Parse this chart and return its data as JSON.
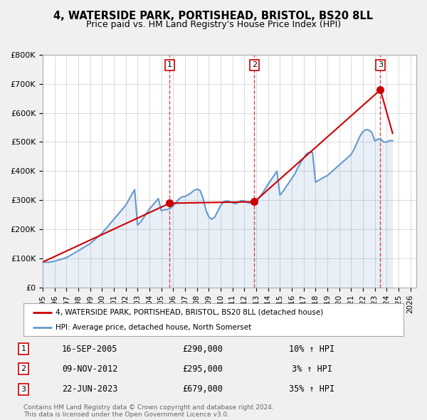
{
  "title": "4, WATERSIDE PARK, PORTISHEAD, BRISTOL, BS20 8LL",
  "subtitle": "Price paid vs. HM Land Registry's House Price Index (HPI)",
  "background_color": "#f0f0f0",
  "plot_background": "#ffffff",
  "grid_color": "#cccccc",
  "xmin": 1995.0,
  "xmax": 2026.5,
  "ymin": 0,
  "ymax": 800000,
  "yticks": [
    0,
    100000,
    200000,
    300000,
    400000,
    500000,
    600000,
    700000,
    800000
  ],
  "ytick_labels": [
    "£0",
    "£100K",
    "£200K",
    "£300K",
    "£400K",
    "£500K",
    "£600K",
    "£700K",
    "£800K"
  ],
  "xtick_years": [
    1995,
    1996,
    1997,
    1998,
    1999,
    2000,
    2001,
    2002,
    2003,
    2004,
    2005,
    2006,
    2007,
    2008,
    2009,
    2010,
    2011,
    2012,
    2013,
    2014,
    2015,
    2016,
    2017,
    2018,
    2019,
    2020,
    2021,
    2022,
    2023,
    2024,
    2025,
    2026
  ],
  "sale_color": "#cc0000",
  "hpi_color": "#6699cc",
  "sale_linewidth": 1.5,
  "hpi_linewidth": 1.5,
  "transaction_box_color": "#cc0000",
  "transactions": [
    {
      "num": 1,
      "year": 2005.71,
      "price": 290000
    },
    {
      "num": 2,
      "year": 2012.85,
      "price": 295000
    },
    {
      "num": 3,
      "year": 2023.47,
      "price": 679000
    }
  ],
  "legend_label_sale": "4, WATERSIDE PARK, PORTISHEAD, BRISTOL, BS20 8LL (detached house)",
  "legend_label_hpi": "HPI: Average price, detached house, North Somerset",
  "footer_line1": "Contains HM Land Registry data © Crown copyright and database right 2024.",
  "footer_line2": "This data is licensed under the Open Government Licence v3.0.",
  "table_rows": [
    {
      "num": 1,
      "date": "16-SEP-2005",
      "price": "£290,000",
      "pct_hpi": "10% ↑ HPI"
    },
    {
      "num": 2,
      "date": "09-NOV-2012",
      "price": "£295,000",
      "pct_hpi": "3% ↑ HPI"
    },
    {
      "num": 3,
      "date": "22-JUN-2023",
      "price": "£679,000",
      "pct_hpi": "35% ↑ HPI"
    }
  ],
  "hpi_data_years": [
    1995.0,
    1995.25,
    1995.5,
    1995.75,
    1996.0,
    1996.25,
    1996.5,
    1996.75,
    1997.0,
    1997.25,
    1997.5,
    1997.75,
    1998.0,
    1998.25,
    1998.5,
    1998.75,
    1999.0,
    1999.25,
    1999.5,
    1999.75,
    2000.0,
    2000.25,
    2000.5,
    2000.75,
    2001.0,
    2001.25,
    2001.5,
    2001.75,
    2002.0,
    2002.25,
    2002.5,
    2002.75,
    2003.0,
    2003.25,
    2003.5,
    2003.75,
    2004.0,
    2004.25,
    2004.5,
    2004.75,
    2005.0,
    2005.25,
    2005.5,
    2005.75,
    2006.0,
    2006.25,
    2006.5,
    2006.75,
    2007.0,
    2007.25,
    2007.5,
    2007.75,
    2008.0,
    2008.25,
    2008.5,
    2008.75,
    2009.0,
    2009.25,
    2009.5,
    2009.75,
    2010.0,
    2010.25,
    2010.5,
    2010.75,
    2011.0,
    2011.25,
    2011.5,
    2011.75,
    2012.0,
    2012.25,
    2012.5,
    2012.75,
    2013.0,
    2013.25,
    2013.5,
    2013.75,
    2014.0,
    2014.25,
    2014.5,
    2014.75,
    2015.0,
    2015.25,
    2015.5,
    2015.75,
    2016.0,
    2016.25,
    2016.5,
    2016.75,
    2017.0,
    2017.25,
    2017.5,
    2017.75,
    2018.0,
    2018.25,
    2018.5,
    2018.75,
    2019.0,
    2019.25,
    2019.5,
    2019.75,
    2020.0,
    2020.25,
    2020.5,
    2020.75,
    2021.0,
    2021.25,
    2021.5,
    2021.75,
    2022.0,
    2022.25,
    2022.5,
    2022.75,
    2023.0,
    2023.25,
    2023.5,
    2023.75,
    2024.0,
    2024.25,
    2024.5
  ],
  "hpi_data_values": [
    88000,
    87500,
    87500,
    89000,
    91000,
    94000,
    97000,
    100000,
    103000,
    109000,
    115000,
    121000,
    127000,
    133000,
    139000,
    145000,
    151000,
    160000,
    169000,
    178000,
    187000,
    199000,
    211000,
    223000,
    235000,
    247000,
    259000,
    271000,
    283000,
    301000,
    319000,
    337000,
    215000,
    225000,
    240000,
    255000,
    270000,
    282000,
    294000,
    306000,
    264000,
    268000,
    268000,
    272000,
    281000,
    293000,
    305000,
    312000,
    313000,
    319000,
    325000,
    334000,
    338000,
    335000,
    310000,
    268000,
    243000,
    235000,
    242000,
    262000,
    282000,
    295000,
    298000,
    296000,
    291000,
    288000,
    293000,
    299000,
    298000,
    292000,
    290000,
    292000,
    297000,
    308000,
    323000,
    338000,
    355000,
    370000,
    385000,
    400000,
    318000,
    330000,
    345000,
    360000,
    375000,
    390000,
    411000,
    430000,
    445000,
    460000,
    465000,
    464000,
    362000,
    368000,
    374000,
    380000,
    385000,
    394000,
    403000,
    412000,
    421000,
    430000,
    439000,
    448000,
    457000,
    475000,
    498000,
    520000,
    536000,
    543000,
    541000,
    533000,
    504000,
    510000,
    510000,
    500000,
    500000,
    505000,
    505000
  ],
  "sale_data_years": [
    1995.0,
    2005.71,
    2012.85,
    2023.47,
    2024.5
  ],
  "sale_data_values": [
    88000,
    290000,
    295000,
    679000,
    530000
  ]
}
